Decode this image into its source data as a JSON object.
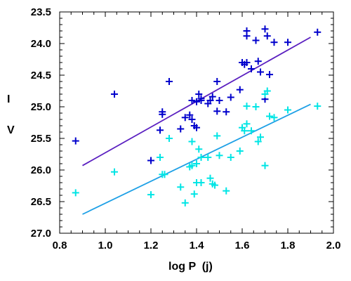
{
  "chart_data": {
    "type": "scatter",
    "xlabel": "log P  (j)",
    "ylabel_lines": [
      "I",
      "V"
    ],
    "xlim": [
      0.8,
      2.0
    ],
    "ylim": [
      23.5,
      27.0
    ],
    "y_inverted": true,
    "x_ticks": [
      "0.8",
      "1.0",
      "1.2",
      "1.4",
      "1.6",
      "1.8",
      "2.0"
    ],
    "y_ticks": [
      "23.5",
      "24.0",
      "24.5",
      "25.0",
      "25.5",
      "26.0",
      "26.5",
      "27.0"
    ],
    "grid": false,
    "series": [
      {
        "color": "#0000cc",
        "points": [
          [
            0.87,
            25.54
          ],
          [
            1.04,
            24.8
          ],
          [
            1.2,
            25.85
          ],
          [
            1.24,
            25.37
          ],
          [
            1.25,
            25.12
          ],
          [
            1.25,
            25.08
          ],
          [
            1.28,
            24.6
          ],
          [
            1.33,
            25.35
          ],
          [
            1.35,
            25.17
          ],
          [
            1.37,
            25.13
          ],
          [
            1.38,
            24.9
          ],
          [
            1.38,
            25.2
          ],
          [
            1.39,
            25.3
          ],
          [
            1.4,
            24.92
          ],
          [
            1.4,
            25.33
          ],
          [
            1.41,
            24.8
          ],
          [
            1.42,
            24.9
          ],
          [
            1.42,
            24.87
          ],
          [
            1.45,
            24.95
          ],
          [
            1.46,
            24.9
          ],
          [
            1.47,
            24.84
          ],
          [
            1.49,
            24.6
          ],
          [
            1.49,
            25.07
          ],
          [
            1.5,
            24.9
          ],
          [
            1.53,
            25.08
          ],
          [
            1.55,
            24.85
          ],
          [
            1.59,
            24.73
          ],
          [
            1.6,
            24.3
          ],
          [
            1.61,
            24.33
          ],
          [
            1.62,
            23.8
          ],
          [
            1.62,
            23.88
          ],
          [
            1.62,
            24.3
          ],
          [
            1.64,
            24.4
          ],
          [
            1.66,
            23.95
          ],
          [
            1.67,
            24.28
          ],
          [
            1.68,
            24.45
          ],
          [
            1.7,
            23.77
          ],
          [
            1.7,
            24.88
          ],
          [
            1.71,
            23.88
          ],
          [
            1.72,
            24.49
          ],
          [
            1.74,
            23.98
          ],
          [
            1.8,
            23.98
          ],
          [
            1.93,
            23.82
          ]
        ],
        "fit": [
          [
            0.9,
            25.93
          ],
          [
            1.9,
            23.9
          ]
        ]
      },
      {
        "color": "#00e5e5",
        "points": [
          [
            0.87,
            26.36
          ],
          [
            1.04,
            26.03
          ],
          [
            1.2,
            26.39
          ],
          [
            1.24,
            25.8
          ],
          [
            1.25,
            26.07
          ],
          [
            1.26,
            26.07
          ],
          [
            1.28,
            25.5
          ],
          [
            1.33,
            26.27
          ],
          [
            1.35,
            26.52
          ],
          [
            1.37,
            25.95
          ],
          [
            1.38,
            25.55
          ],
          [
            1.38,
            25.93
          ],
          [
            1.39,
            26.38
          ],
          [
            1.4,
            26.2
          ],
          [
            1.4,
            25.9
          ],
          [
            1.41,
            25.67
          ],
          [
            1.42,
            26.2
          ],
          [
            1.42,
            25.8
          ],
          [
            1.45,
            25.8
          ],
          [
            1.46,
            26.13
          ],
          [
            1.47,
            26.22
          ],
          [
            1.48,
            26.24
          ],
          [
            1.49,
            25.46
          ],
          [
            1.5,
            25.77
          ],
          [
            1.53,
            26.33
          ],
          [
            1.55,
            25.8
          ],
          [
            1.59,
            25.7
          ],
          [
            1.6,
            25.33
          ],
          [
            1.61,
            25.38
          ],
          [
            1.62,
            24.99
          ],
          [
            1.62,
            25.27
          ],
          [
            1.64,
            25.38
          ],
          [
            1.66,
            25.0
          ],
          [
            1.67,
            25.55
          ],
          [
            1.68,
            25.48
          ],
          [
            1.7,
            24.8
          ],
          [
            1.7,
            25.93
          ],
          [
            1.71,
            24.75
          ],
          [
            1.72,
            25.15
          ],
          [
            1.74,
            25.17
          ],
          [
            1.8,
            25.05
          ],
          [
            1.93,
            24.99
          ]
        ],
        "fit": [
          [
            0.9,
            26.7
          ],
          [
            1.9,
            24.96
          ]
        ]
      }
    ]
  }
}
